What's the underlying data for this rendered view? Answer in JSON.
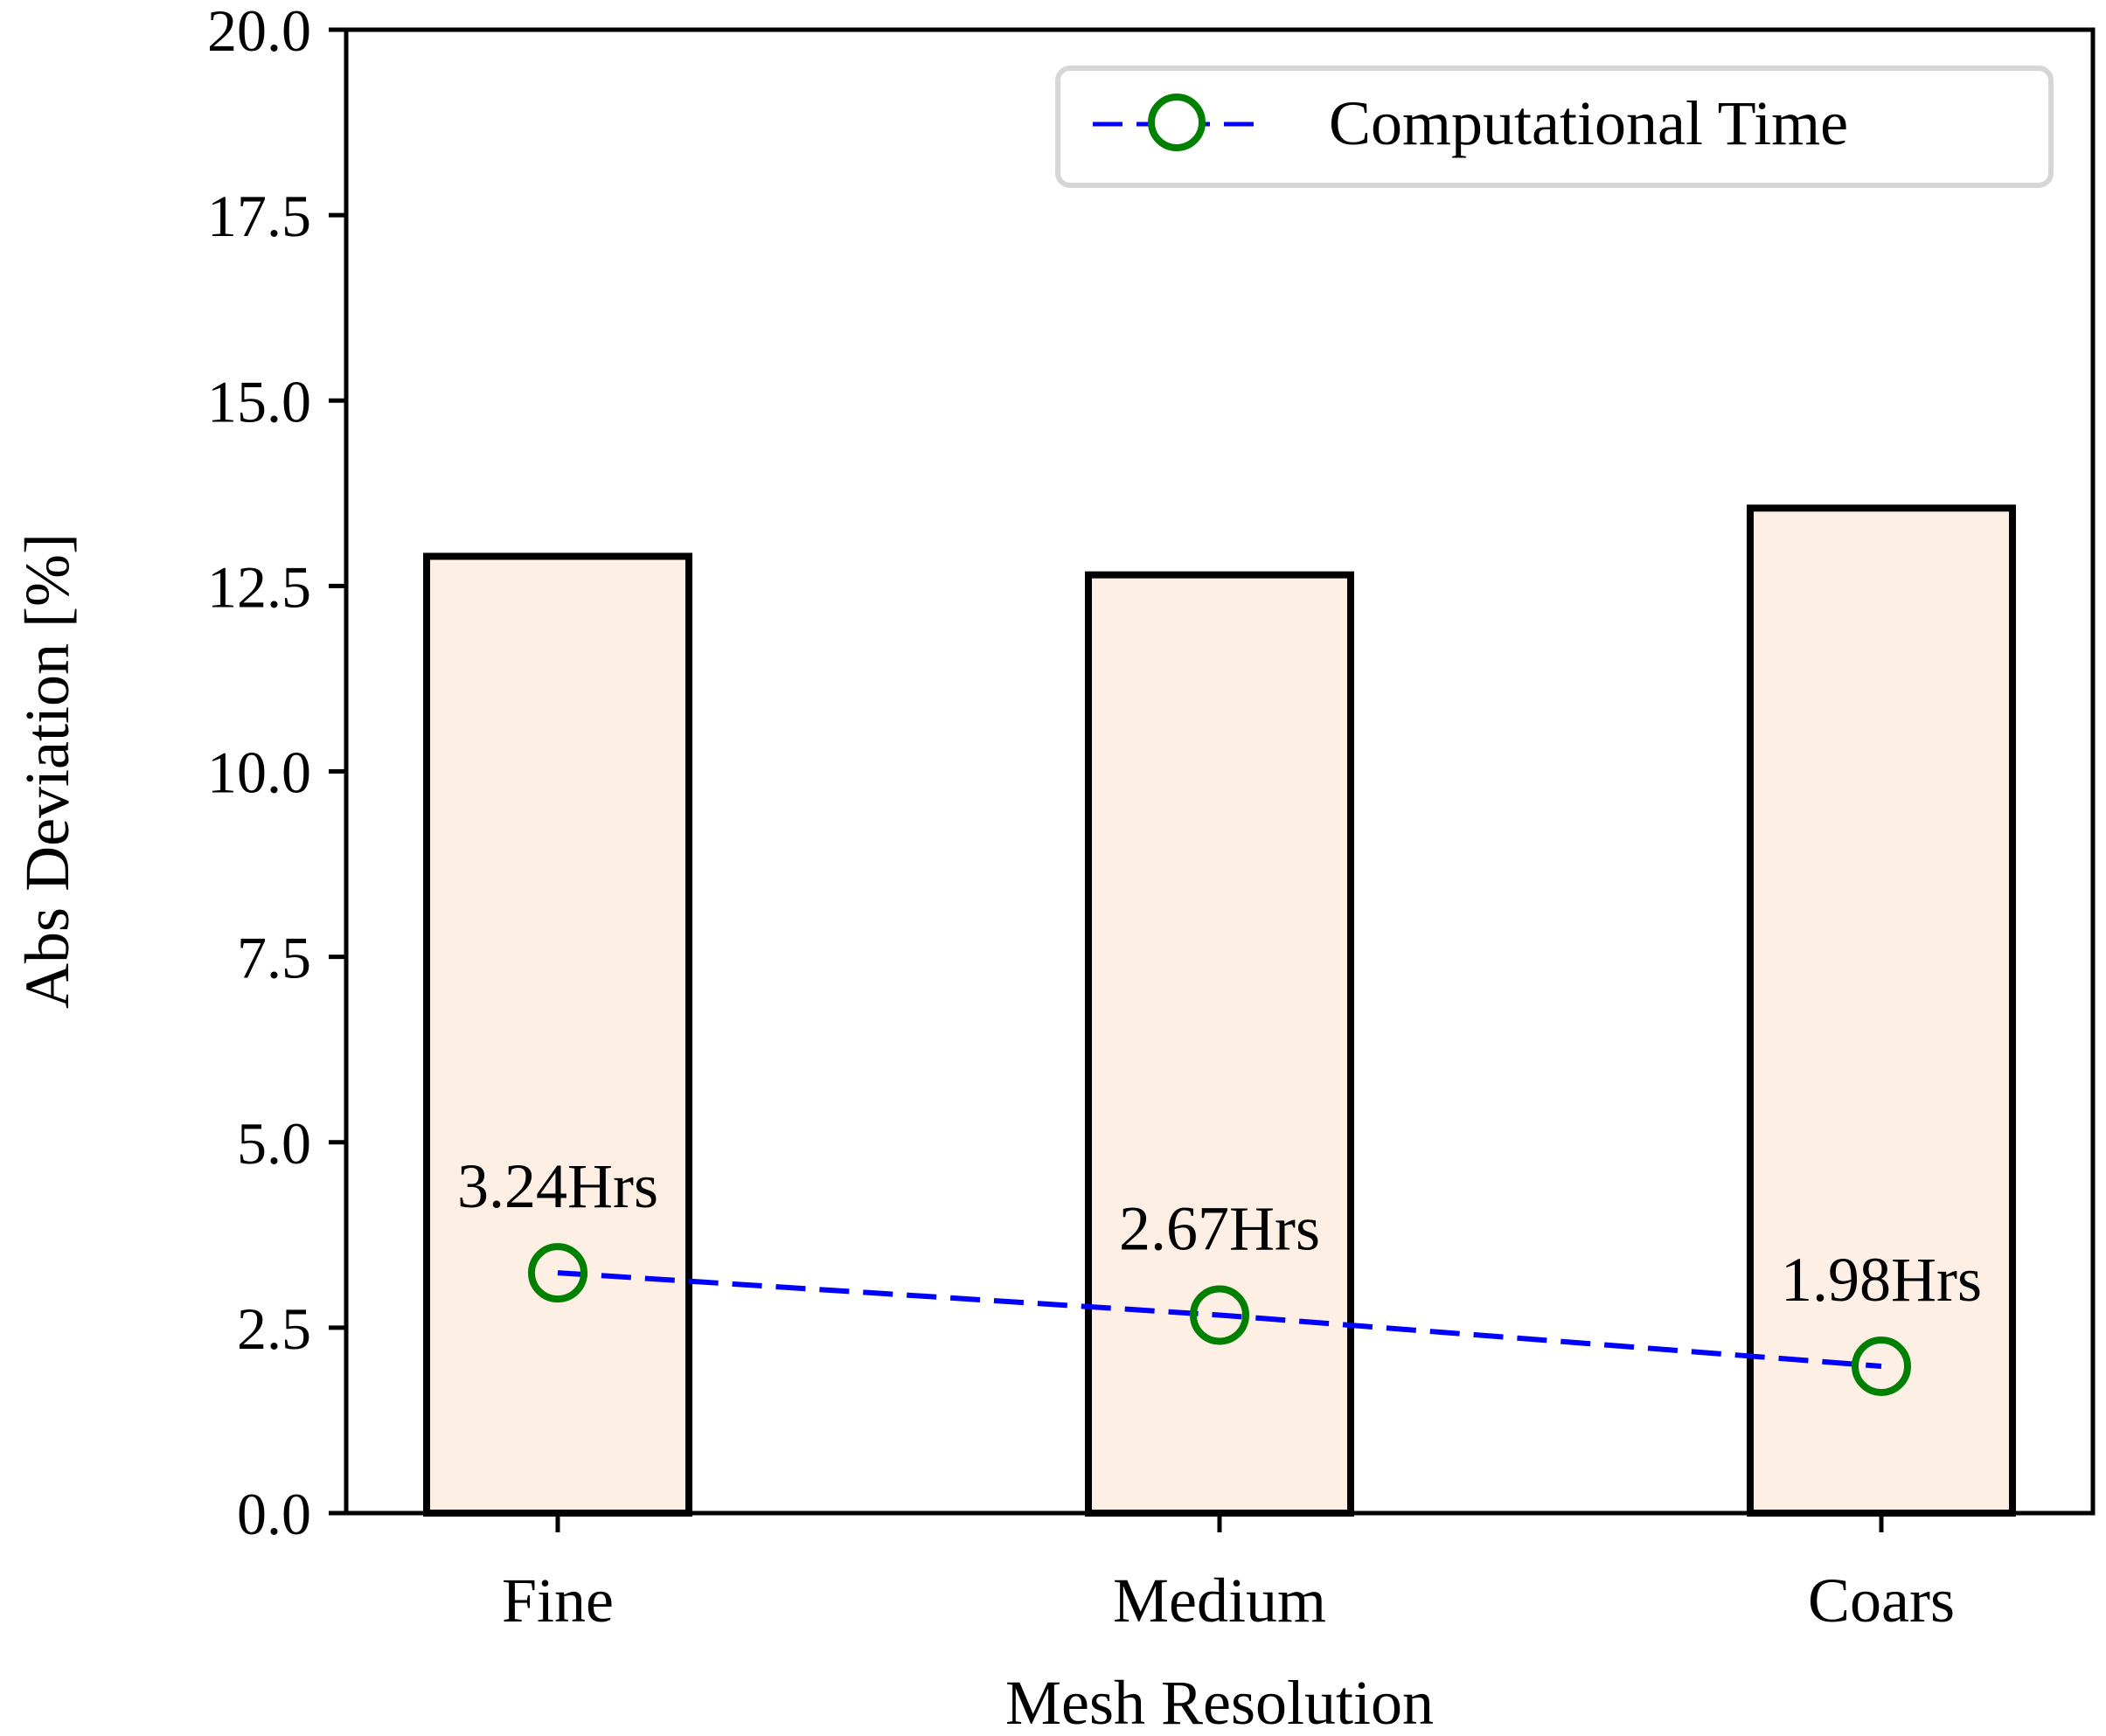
{
  "chart_data": {
    "type": "bar",
    "categories": [
      "Fine",
      "Medium",
      "Coars"
    ],
    "bar_series": {
      "name": "Abs Deviation",
      "values": [
        12.9,
        12.65,
        13.55
      ],
      "fill_color": "#fdefe3",
      "edge_color": "#000000"
    },
    "line_series": {
      "name": "Computational Time",
      "values": [
        3.24,
        2.67,
        1.98
      ],
      "point_labels": [
        "3.24Hrs",
        "2.67Hrs",
        "1.98Hrs"
      ],
      "line_color": "#0000ff",
      "line_style": "dashed",
      "marker": "open-circle",
      "marker_color": "#008000"
    },
    "xlabel": "Mesh Resolution",
    "ylabel": "Abs Deviation [%]",
    "ylim": [
      0,
      20
    ],
    "yticks": [
      "0.0",
      "2.5",
      "5.0",
      "7.5",
      "10.0",
      "12.5",
      "15.0",
      "17.5",
      "20.0"
    ],
    "legend": {
      "position": "top-right",
      "entries": [
        "Computational Time"
      ]
    },
    "grid": false
  }
}
